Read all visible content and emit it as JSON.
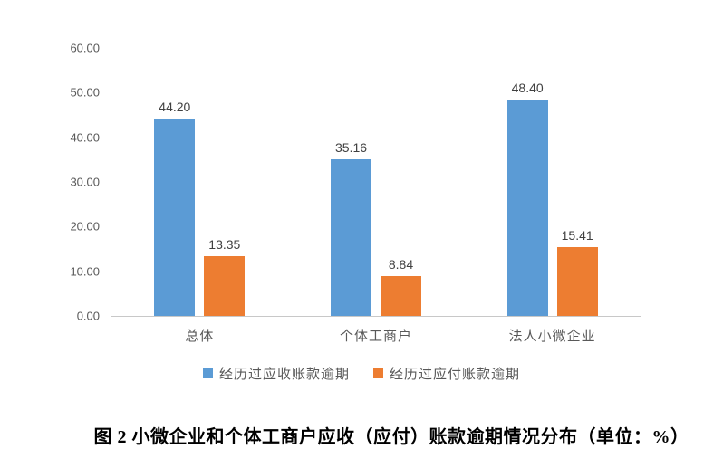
{
  "chart_data": {
    "type": "bar",
    "categories": [
      "总体",
      "个体工商户",
      "法人小微企业"
    ],
    "series": [
      {
        "name": "经历过应收账款逾期",
        "color": "#5B9BD5",
        "values": [
          44.2,
          35.16,
          48.4
        ]
      },
      {
        "name": "经历过应付账款逾期",
        "color": "#ED7D31",
        "values": [
          13.35,
          8.84,
          15.41
        ]
      }
    ],
    "ylim": [
      0,
      60
    ],
    "ytick_step": 10,
    "value_label_decimals": 2,
    "grid": false,
    "legend_position": "bottom",
    "xlabel": "",
    "ylabel": ""
  },
  "caption": "图 2 小微企业和个体工商户应收（应付）账款逾期情况分布（单位：%）",
  "colors": {
    "series_blue": "#5B9BD5",
    "series_orange": "#ED7D31",
    "axis_line": "#C8C8C8",
    "tick_text": "#595959",
    "value_text": "#404040",
    "category_text": "#595959",
    "caption_text": "#000000"
  }
}
